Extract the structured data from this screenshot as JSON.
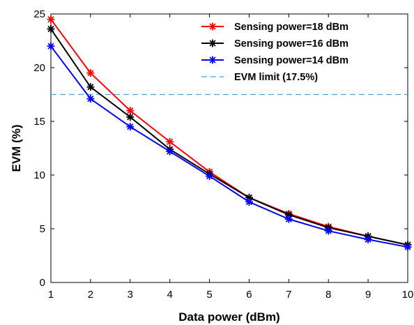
{
  "chart_data": {
    "type": "line",
    "xlabel": "Data power (dBm)",
    "ylabel": "EVM (%)",
    "xlim": [
      1,
      10
    ],
    "ylim": [
      0,
      25
    ],
    "x_ticks": [
      1,
      2,
      3,
      4,
      5,
      6,
      7,
      8,
      9,
      10
    ],
    "y_ticks": [
      0,
      5,
      10,
      15,
      20,
      25
    ],
    "grid": false,
    "legend_position": "top-right",
    "x": [
      1,
      2,
      3,
      4,
      5,
      6,
      7,
      8,
      9,
      10
    ],
    "series": [
      {
        "name": "Sensing power=18 dBm",
        "color": "#ff0000",
        "style": "solid",
        "marker": "asterisk",
        "values": [
          24.5,
          19.5,
          16.0,
          13.1,
          10.3,
          7.9,
          6.4,
          5.2,
          4.3,
          3.5
        ]
      },
      {
        "name": "Sensing power=16 dBm",
        "color": "#000000",
        "style": "solid",
        "marker": "asterisk",
        "values": [
          23.6,
          18.2,
          15.4,
          12.4,
          10.1,
          7.9,
          6.3,
          5.1,
          4.3,
          3.5
        ]
      },
      {
        "name": "Sensing power=14 dBm",
        "color": "#0000ff",
        "style": "solid",
        "marker": "asterisk",
        "values": [
          22.0,
          17.1,
          14.5,
          12.2,
          9.9,
          7.5,
          5.9,
          4.8,
          4.0,
          3.3
        ]
      }
    ],
    "reference_lines": [
      {
        "name": "EVM limit (17.5%)",
        "y": 17.5,
        "color": "#4aa3df",
        "style": "dashed"
      }
    ]
  }
}
